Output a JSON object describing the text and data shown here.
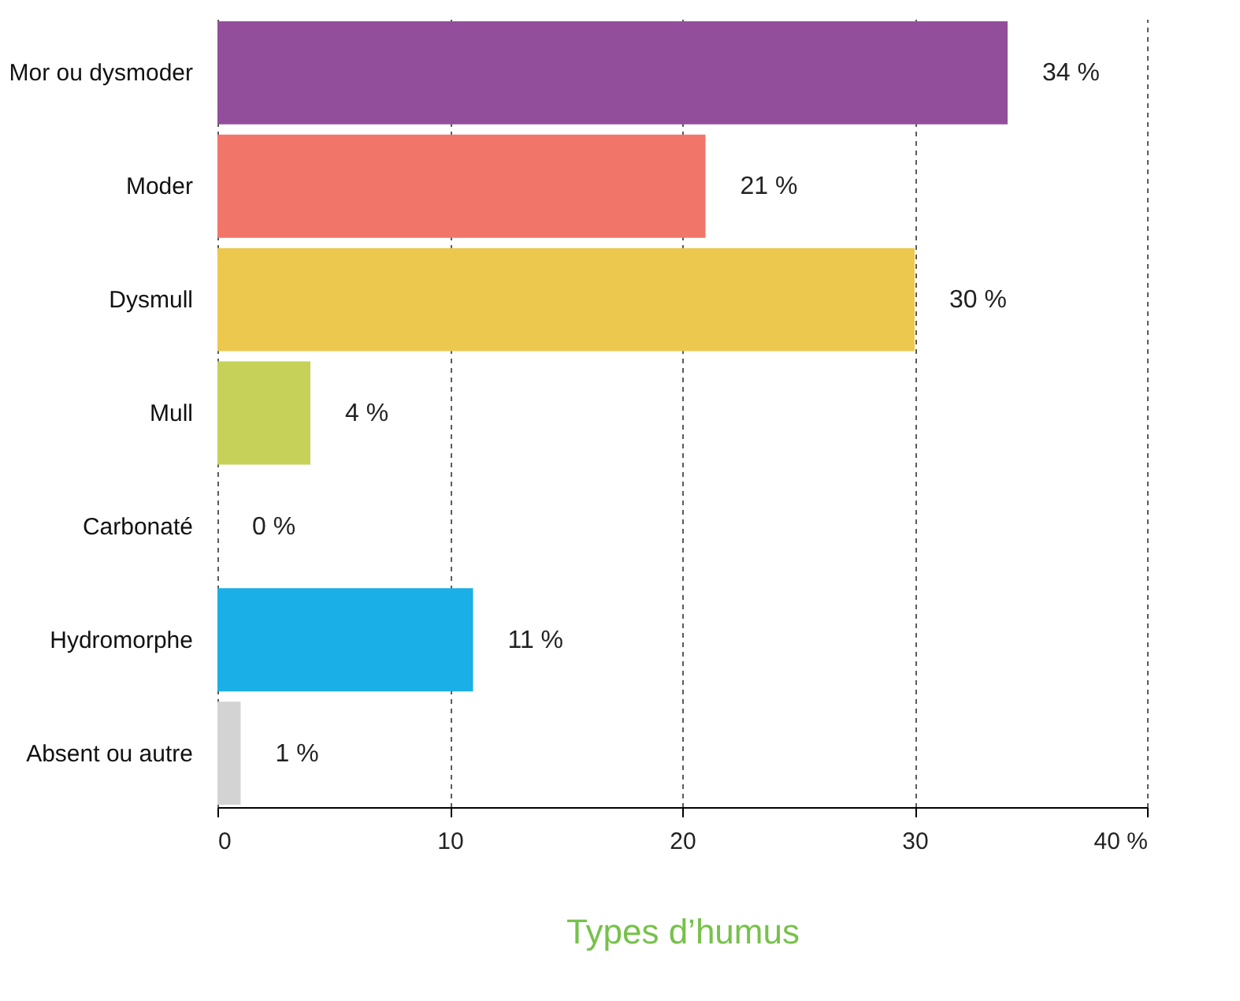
{
  "chart_data": {
    "type": "bar",
    "orientation": "horizontal",
    "xlabel": "Types d’humus",
    "categories": [
      "Mor ou dysmoder",
      "Moder",
      "Dysmull",
      "Mull",
      "Carbonaté",
      "Hydromorphe",
      "Absent ou autre"
    ],
    "values": [
      34,
      21,
      30,
      4,
      0,
      11,
      1
    ],
    "value_labels": [
      "34 %",
      "21 %",
      "30 %",
      "4 %",
      "0 %",
      "11 %",
      "1 %"
    ],
    "colors": [
      "#934e9b",
      "#f2756a",
      "#edc84f",
      "#c6d15a",
      "#cfe3bf",
      "#1aafe6",
      "#d3d3d3"
    ],
    "xlim": [
      0,
      40
    ],
    "xticks": [
      0,
      10,
      20,
      30,
      {
        "value": 40,
        "label": "40 %"
      }
    ],
    "grid": "x"
  }
}
